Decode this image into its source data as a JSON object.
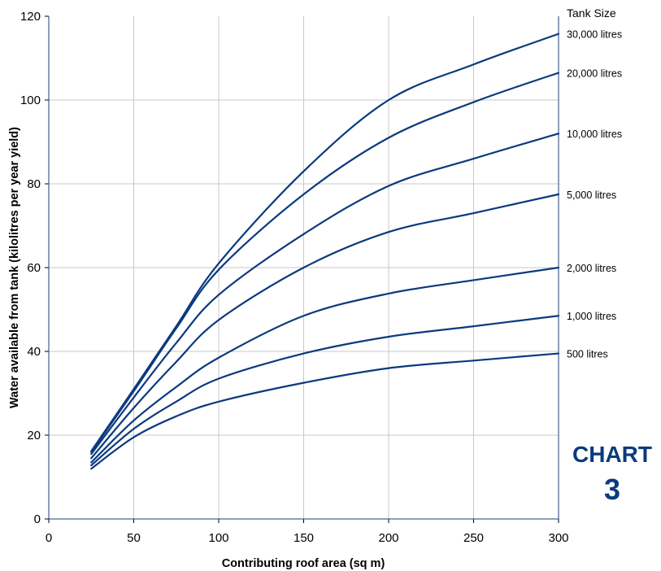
{
  "chart_data": {
    "type": "line",
    "title": "",
    "xlabel": "Contributing roof area (sq m)",
    "ylabel": "Water available from tank (kilolitres per year yield)",
    "xlim": [
      0,
      300
    ],
    "ylim": [
      0,
      120
    ],
    "xticks": [
      "0",
      "50",
      "100",
      "150",
      "200",
      "250",
      "300"
    ],
    "yticks": [
      "0",
      "20",
      "40",
      "60",
      "80",
      "100",
      "120"
    ],
    "grid": true,
    "legend_title": "Tank Size",
    "legend_placement": "right",
    "line_color": "#0b3a7e",
    "x": [
      25,
      50,
      75,
      100,
      150,
      200,
      250,
      300
    ],
    "series": [
      {
        "name": "30,000 litres",
        "values": [
          16.2,
          31.0,
          46.0,
          61.0,
          83.0,
          100.0,
          108.5,
          115.8
        ]
      },
      {
        "name": "20,000 litres",
        "values": [
          16.0,
          30.5,
          45.5,
          59.5,
          77.5,
          91.0,
          99.5,
          106.5
        ]
      },
      {
        "name": "10,000 litres",
        "values": [
          15.5,
          29.0,
          42.0,
          53.5,
          68.0,
          79.5,
          86.0,
          92.0
        ]
      },
      {
        "name": "5,000 litres",
        "values": [
          14.5,
          26.5,
          37.5,
          47.5,
          60.0,
          68.5,
          73.0,
          77.5
        ]
      },
      {
        "name": "2,000 litres",
        "values": [
          13.5,
          23.5,
          31.5,
          38.5,
          48.5,
          53.8,
          57.0,
          60.0
        ]
      },
      {
        "name": "1,000 litres",
        "values": [
          12.8,
          21.5,
          28.0,
          33.5,
          39.5,
          43.5,
          46.0,
          48.5
        ]
      },
      {
        "name": "500 litres",
        "values": [
          12.0,
          19.5,
          24.5,
          28.0,
          32.5,
          36.0,
          37.8,
          39.5
        ]
      }
    ]
  },
  "badge": {
    "line1": "CHART",
    "line2": "3"
  }
}
